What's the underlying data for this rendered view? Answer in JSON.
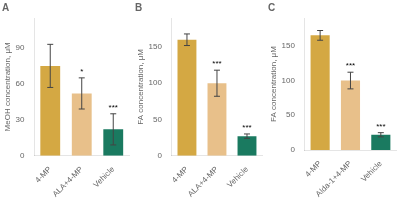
{
  "chart_data": [
    {
      "type": "bar",
      "title": "A",
      "ylabel": "MeOH concentration, μM",
      "categories": [
        "4-MP",
        "ALA+4-MP",
        "Vehicle"
      ],
      "values": [
        75,
        52,
        22
      ],
      "errors": [
        18,
        13,
        13
      ],
      "colors": [
        "#D4A843",
        "#E8C08A",
        "#1A7A60"
      ],
      "annotations": [
        {
          "x": "ALA+4-MP",
          "text": "*"
        },
        {
          "x": "Vehicle",
          "text": "***"
        }
      ],
      "ylim": [
        0,
        115
      ],
      "yticks": [
        0,
        30,
        60,
        90
      ],
      "grid": false
    },
    {
      "type": "bar",
      "title": "B",
      "ylabel": "FA concentration, μM",
      "categories": [
        "4-MP",
        "ALA+4-MP",
        "Vehicle"
      ],
      "values": [
        160,
        100,
        27
      ],
      "errors": [
        8,
        18,
        3
      ],
      "colors": [
        "#D4A843",
        "#E8C08A",
        "#1A7A60"
      ],
      "annotations": [
        {
          "x": "ALA+4-MP",
          "text": "***"
        },
        {
          "x": "Vehicle",
          "text": "***"
        }
      ],
      "ylim": [
        0,
        190
      ],
      "yticks": [
        0,
        50,
        100,
        150
      ],
      "grid": false
    },
    {
      "type": "bar",
      "title": "C",
      "ylabel": "FA concentration, μM",
      "categories": [
        "4-MP",
        "Alda-1+4-MP",
        "Vehicle"
      ],
      "values": [
        165,
        100,
        22
      ],
      "errors": [
        7,
        12,
        3
      ],
      "colors": [
        "#D4A843",
        "#E8C08A",
        "#1A7A60"
      ],
      "annotations": [
        {
          "x": "Alda-1+4-MP",
          "text": "***"
        },
        {
          "x": "Vehicle",
          "text": "***"
        }
      ],
      "ylim": [
        0,
        190
      ],
      "yticks": [
        0,
        50,
        100,
        150
      ],
      "grid": false
    }
  ]
}
